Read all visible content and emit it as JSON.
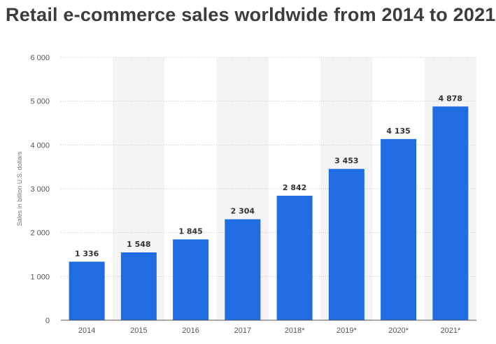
{
  "chart_data": {
    "type": "bar",
    "title": "Retail e-commerce sales worldwide from 2014 to 2021",
    "xlabel": "",
    "ylabel": "Sales in billion U.S. dollars",
    "categories": [
      "2014",
      "2015",
      "2016",
      "2017",
      "2018*",
      "2019*",
      "2020*",
      "2021*"
    ],
    "values": [
      1336,
      1548,
      1845,
      2304,
      2842,
      3453,
      4135,
      4878
    ],
    "value_labels": [
      "1 336",
      "1 548",
      "1 845",
      "2 304",
      "2 842",
      "3 453",
      "4 135",
      "4 878"
    ],
    "ylim": [
      0,
      6000
    ],
    "yticks": [
      0,
      1000,
      2000,
      3000,
      4000,
      5000,
      6000
    ],
    "ytick_labels": [
      "0",
      "1 000",
      "2 000",
      "3 000",
      "4 000",
      "5 000",
      "6 000"
    ],
    "grid": true,
    "legend": "none",
    "bar_color": "#1f6ce3",
    "band_color": "#f4f4f4"
  }
}
